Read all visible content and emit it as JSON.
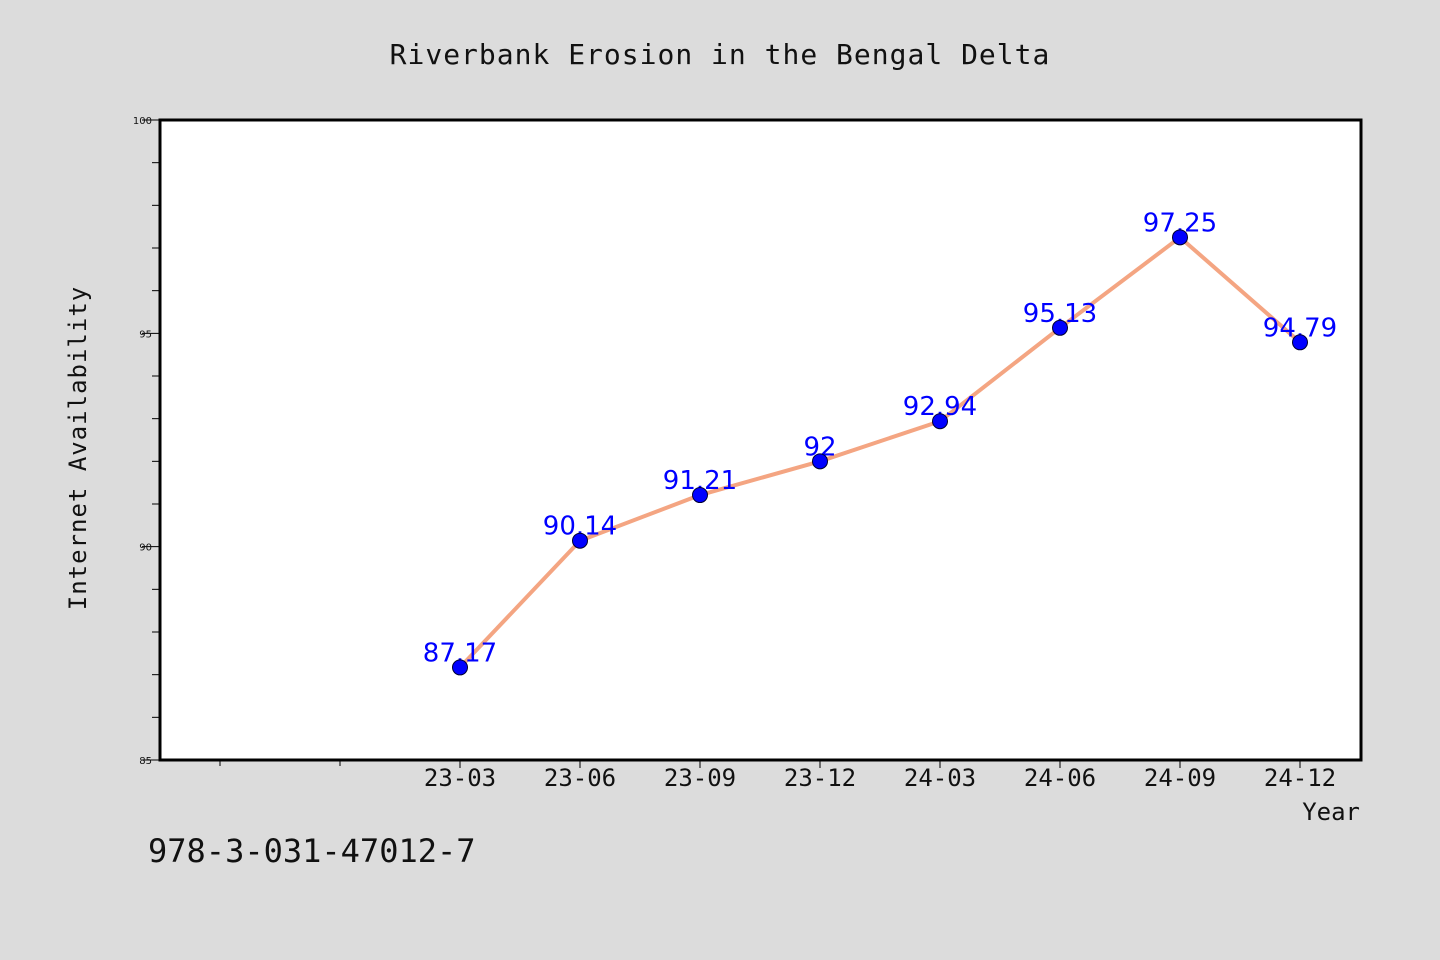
{
  "footer_text": "978-3-031-47012-7",
  "colors": {
    "background": "#dcdcdc",
    "plot_bg": "#ffffff",
    "line": "#f4a582",
    "marker": "#0000ff",
    "label": "#0000ff"
  },
  "chart_data": {
    "type": "line",
    "title": "Riverbank Erosion in the Bengal Delta",
    "xlabel": "Year",
    "ylabel": "Internet Availability",
    "categories": [
      "23-03",
      "23-06",
      "23-09",
      "23-12",
      "24-03",
      "24-06",
      "24-09",
      "24-12"
    ],
    "series": [
      {
        "values": [
          87.17,
          90.14,
          91.21,
          92,
          92.94,
          95.13,
          97.25,
          94.79
        ]
      }
    ],
    "data_labels": [
      "87.17",
      "90.14",
      "91.21",
      "92",
      "92.94",
      "95.13",
      "97.25",
      "94.79"
    ],
    "ylim": [
      85,
      100
    ],
    "yticks": [
      85,
      90,
      95,
      100
    ],
    "grid": false,
    "legend": "none"
  }
}
